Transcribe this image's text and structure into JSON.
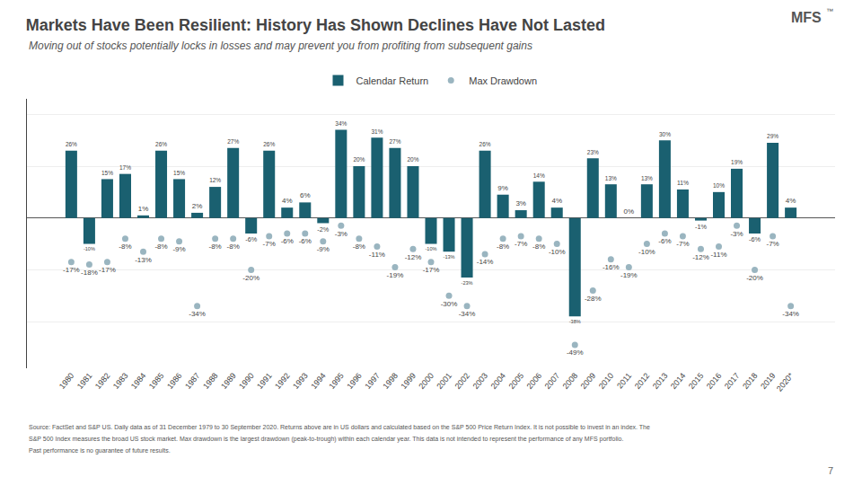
{
  "chart_data": {
    "type": "bar",
    "title": "Markets Have Been Resilient: History Has Shown Declines Have Not Lasted",
    "subtitle": "Moving out of stocks potentially locks in losses and may prevent you from profiting from subsequent gains",
    "categories": [
      "1980",
      "1981",
      "1982",
      "1983",
      "1984",
      "1985",
      "1986",
      "1987",
      "1988",
      "1989",
      "1990",
      "1991",
      "1992",
      "1993",
      "1994",
      "1995",
      "1996",
      "1997",
      "1998",
      "1999",
      "2000",
      "2001",
      "2002",
      "2003",
      "2004",
      "2005",
      "2006",
      "2007",
      "2008",
      "2009",
      "2010",
      "2011",
      "2012",
      "2013",
      "2014",
      "2015",
      "2016",
      "2017",
      "2018",
      "2019",
      "2020*"
    ],
    "series": [
      {
        "name": "Calendar Return",
        "type": "bar",
        "color": "#1a6070",
        "values": [
          26,
          -10,
          15,
          17,
          1,
          26,
          15,
          2,
          12,
          27,
          -6,
          26,
          4,
          6,
          -2,
          34,
          20,
          31,
          27,
          20,
          -10,
          -13,
          -23,
          26,
          9,
          3,
          14,
          4,
          -38,
          23,
          13,
          0,
          13,
          30,
          11,
          -1,
          10,
          19,
          -6,
          29,
          4
        ],
        "value_labels": [
          "26%",
          "-10%",
          "15%",
          "17%",
          "1%",
          "26%",
          "15%",
          "2%",
          "12%",
          "27%",
          "-6%",
          "26%",
          "4%",
          "6%",
          "-2%",
          "34%",
          "20%",
          "31%",
          "27%",
          "20%",
          "-10%",
          "-13%",
          "-23%",
          "26%",
          "9%",
          "3%",
          "14%",
          "4%",
          "-38%",
          "23%",
          "13%",
          "0%",
          "13%",
          "30%",
          "11%",
          "-1%",
          "10%",
          "19%",
          "-6%",
          "29%",
          "4%"
        ]
      },
      {
        "name": "Max Drawdown",
        "type": "scatter",
        "color": "#9ab5c0",
        "marker": "circle",
        "values": [
          -17,
          -18,
          -17,
          -8,
          -13,
          -8,
          -9,
          -34,
          -8,
          -8,
          -20,
          -7,
          -6,
          -6,
          -9,
          -3,
          -8,
          -11,
          -19,
          -12,
          -17,
          -30,
          -34,
          -14,
          -8,
          -7,
          -8,
          -10,
          -49,
          -28,
          -16,
          -19,
          -10,
          -6,
          -7,
          -12,
          -11,
          -3,
          -20,
          -7,
          -34
        ],
        "value_labels": [
          "-17%",
          "-18%",
          "-17%",
          "-8%",
          "-13%",
          "-8%",
          "-9%",
          "-34%",
          "-8%",
          "-8%",
          "-20%",
          "-7%",
          "-6%",
          "-6%",
          "-9%",
          "-3%",
          "-8%",
          "-11%",
          "-19%",
          "-12%",
          "-17%",
          "-30%",
          "-34%",
          "-14%",
          "-8%",
          "-7%",
          "-8%",
          "-10%",
          "-49%",
          "-28%",
          "-16%",
          "-19%",
          "-10%",
          "-6%",
          "-7%",
          "-12%",
          "-11%",
          "-3%",
          "-20%",
          "-7%",
          "-34%"
        ]
      }
    ],
    "ylim": [
      -58,
      46
    ],
    "yticks": [
      -40,
      -20,
      0,
      20,
      40
    ],
    "tick_labels": "x",
    "grid": true,
    "legend": "top",
    "data_labels": true,
    "annotations": [
      "Source: FactSet and S&P US. Daily data as of 31 December 1979 to 30 September 2020. Returns above are in US dollars and calculated based on the S&P 500 Price Return Index. It is not possible to invest in an index. The",
      "S&P 500 Index measures the broad US stock market. Max drawdown is the largest drawdown (peak-to-trough) within each calendar year. This data is not intended to represent the performance of any MFS portfolio.",
      "Past performance is no guarantee of future results.",
      "7",
      "MFS",
      "™"
    ]
  }
}
